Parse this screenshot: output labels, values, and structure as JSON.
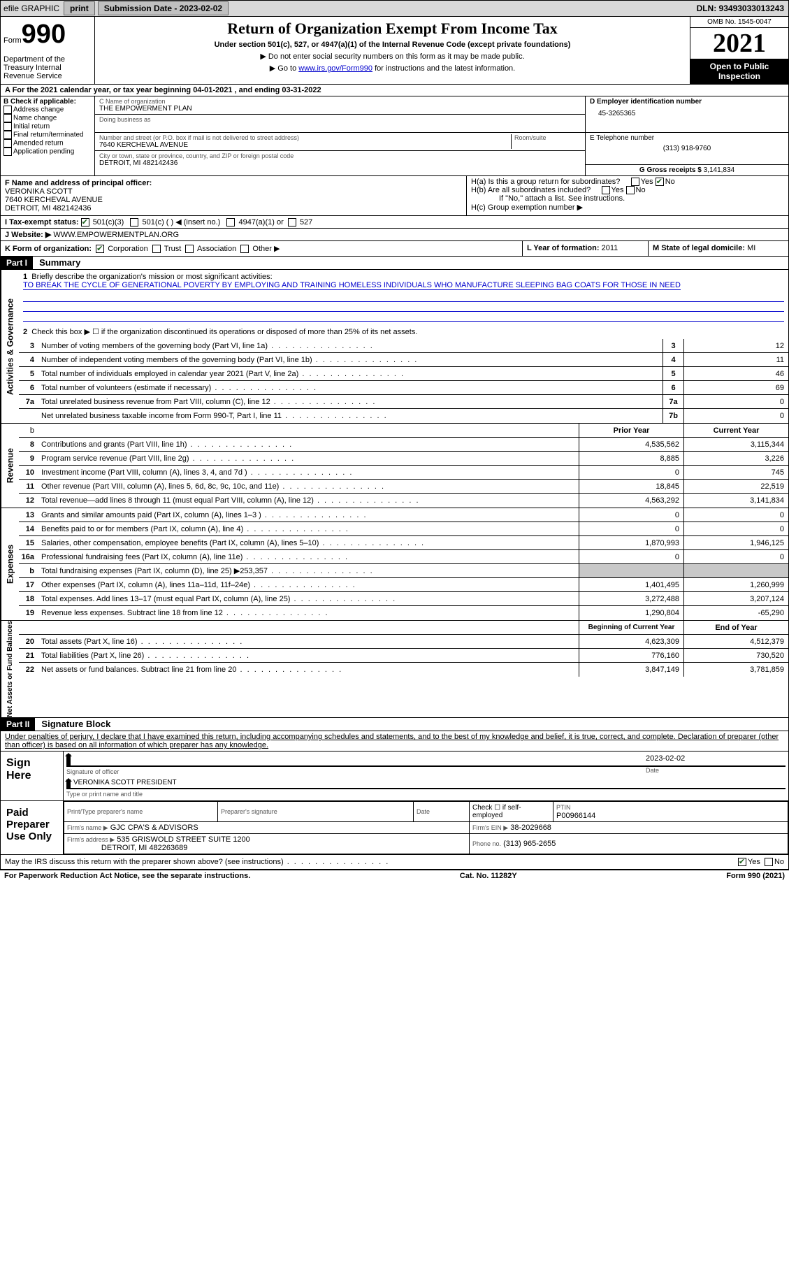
{
  "topbar": {
    "efile": "efile GRAPHIC",
    "print": "print",
    "sub_label": "Submission Date - 2023-02-02",
    "dln": "DLN: 93493033013243"
  },
  "header": {
    "form_word": "Form",
    "form_num": "990",
    "dept": "Department of the Treasury Internal Revenue Service",
    "title": "Return of Organization Exempt From Income Tax",
    "subtitle": "Under section 501(c), 527, or 4947(a)(1) of the Internal Revenue Code (except private foundations)",
    "note1": "▶ Do not enter social security numbers on this form as it may be made public.",
    "note2_pre": "▶ Go to ",
    "note2_link": "www.irs.gov/Form990",
    "note2_post": " for instructions and the latest information.",
    "omb": "OMB No. 1545-0047",
    "year": "2021",
    "open": "Open to Public Inspection"
  },
  "cal": "A For the 2021 calendar year, or tax year beginning 04-01-2021   , and ending 03-31-2022",
  "b": {
    "label": "B Check if applicable:",
    "opts": [
      "Address change",
      "Name change",
      "Initial return",
      "Final return/terminated",
      "Amended return",
      "Application pending"
    ]
  },
  "c": {
    "name_label": "C Name of organization",
    "name": "THE EMPOWERMENT PLAN",
    "dba_label": "Doing business as",
    "addr_label": "Number and street (or P.O. box if mail is not delivered to street address)",
    "room_label": "Room/suite",
    "addr": "7640 KERCHEVAL AVENUE",
    "city_label": "City or town, state or province, country, and ZIP or foreign postal code",
    "city": "DETROIT, MI  482142436"
  },
  "d": {
    "label": "D Employer identification number",
    "val": "45-3265365"
  },
  "e": {
    "label": "E Telephone number",
    "val": "(313) 918-9760"
  },
  "g": {
    "label": "G Gross receipts $",
    "val": "3,141,834"
  },
  "f": {
    "label": "F Name and address of principal officer:",
    "name": "VERONIKA SCOTT",
    "addr1": "7640 KERCHEVAL AVENUE",
    "addr2": "DETROIT, MI  482142436"
  },
  "h": {
    "a": "H(a)  Is this a group return for subordinates?",
    "b": "H(b)  Are all subordinates included?",
    "b_note": "If \"No,\" attach a list. See instructions.",
    "c": "H(c)  Group exemption number ▶"
  },
  "i": {
    "label": "I   Tax-exempt status:",
    "o1": "501(c)(3)",
    "o2": "501(c) (  ) ◀ (insert no.)",
    "o3": "4947(a)(1) or",
    "o4": "527"
  },
  "j": {
    "label": "J   Website: ▶ ",
    "val": "WWW.EMPOWERMENTPLAN.ORG"
  },
  "k": {
    "label": "K Form of organization:",
    "o1": "Corporation",
    "o2": "Trust",
    "o3": "Association",
    "o4": "Other ▶"
  },
  "l": {
    "label": "L Year of formation:",
    "val": "2011"
  },
  "m": {
    "label": "M State of legal domicile:",
    "val": "MI"
  },
  "part1": {
    "num": "Part I",
    "title": "Summary"
  },
  "summary": {
    "line1_label": "Briefly describe the organization's mission or most significant activities:",
    "line1_text": "TO BREAK THE CYCLE OF GENERATIONAL POVERTY BY EMPLOYING AND TRAINING HOMELESS INDIVIDUALS WHO MANUFACTURE SLEEPING BAG COATS FOR THOSE IN NEED",
    "line2": "Check this box ▶ ☐ if the organization discontinued its operations or disposed of more than 25% of its net assets.",
    "rows_gov": [
      {
        "n": "3",
        "t": "Number of voting members of the governing body (Part VI, line 1a)",
        "b": "3",
        "v": "12"
      },
      {
        "n": "4",
        "t": "Number of independent voting members of the governing body (Part VI, line 1b)",
        "b": "4",
        "v": "11"
      },
      {
        "n": "5",
        "t": "Total number of individuals employed in calendar year 2021 (Part V, line 2a)",
        "b": "5",
        "v": "46"
      },
      {
        "n": "6",
        "t": "Total number of volunteers (estimate if necessary)",
        "b": "6",
        "v": "69"
      },
      {
        "n": "7a",
        "t": "Total unrelated business revenue from Part VIII, column (C), line 12",
        "b": "7a",
        "v": "0"
      },
      {
        "n": "",
        "t": "Net unrelated business taxable income from Form 990-T, Part I, line 11",
        "b": "7b",
        "v": "0"
      }
    ],
    "hdr_prior": "Prior Year",
    "hdr_curr": "Current Year",
    "rows_rev": [
      {
        "n": "8",
        "t": "Contributions and grants (Part VIII, line 1h)",
        "p": "4,535,562",
        "c": "3,115,344"
      },
      {
        "n": "9",
        "t": "Program service revenue (Part VIII, line 2g)",
        "p": "8,885",
        "c": "3,226"
      },
      {
        "n": "10",
        "t": "Investment income (Part VIII, column (A), lines 3, 4, and 7d )",
        "p": "0",
        "c": "745"
      },
      {
        "n": "11",
        "t": "Other revenue (Part VIII, column (A), lines 5, 6d, 8c, 9c, 10c, and 11e)",
        "p": "18,845",
        "c": "22,519"
      },
      {
        "n": "12",
        "t": "Total revenue—add lines 8 through 11 (must equal Part VIII, column (A), line 12)",
        "p": "4,563,292",
        "c": "3,141,834"
      }
    ],
    "rows_exp": [
      {
        "n": "13",
        "t": "Grants and similar amounts paid (Part IX, column (A), lines 1–3 )",
        "p": "0",
        "c": "0"
      },
      {
        "n": "14",
        "t": "Benefits paid to or for members (Part IX, column (A), line 4)",
        "p": "0",
        "c": "0"
      },
      {
        "n": "15",
        "t": "Salaries, other compensation, employee benefits (Part IX, column (A), lines 5–10)",
        "p": "1,870,993",
        "c": "1,946,125"
      },
      {
        "n": "16a",
        "t": "Professional fundraising fees (Part IX, column (A), line 11e)",
        "p": "0",
        "c": "0"
      },
      {
        "n": "b",
        "t": "Total fundraising expenses (Part IX, column (D), line 25) ▶253,357",
        "p": "",
        "c": "",
        "shade": true
      },
      {
        "n": "17",
        "t": "Other expenses (Part IX, column (A), lines 11a–11d, 11f–24e)",
        "p": "1,401,495",
        "c": "1,260,999"
      },
      {
        "n": "18",
        "t": "Total expenses. Add lines 13–17 (must equal Part IX, column (A), line 25)",
        "p": "3,272,488",
        "c": "3,207,124"
      },
      {
        "n": "19",
        "t": "Revenue less expenses. Subtract line 18 from line 12",
        "p": "1,290,804",
        "c": "-65,290"
      }
    ],
    "hdr_beg": "Beginning of Current Year",
    "hdr_end": "End of Year",
    "rows_net": [
      {
        "n": "20",
        "t": "Total assets (Part X, line 16)",
        "p": "4,623,309",
        "c": "4,512,379"
      },
      {
        "n": "21",
        "t": "Total liabilities (Part X, line 26)",
        "p": "776,160",
        "c": "730,520"
      },
      {
        "n": "22",
        "t": "Net assets or fund balances. Subtract line 21 from line 20",
        "p": "3,847,149",
        "c": "3,781,859"
      }
    ]
  },
  "part2": {
    "num": "Part II",
    "title": "Signature Block"
  },
  "sig": {
    "jurat": "Under penalties of perjury, I declare that I have examined this return, including accompanying schedules and statements, and to the best of my knowledge and belief, it is true, correct, and complete. Declaration of preparer (other than officer) is based on all information of which preparer has any knowledge.",
    "sign_here": "Sign Here",
    "sig_officer": "Signature of officer",
    "date": "Date",
    "date_val": "2023-02-02",
    "name": "VERONIKA SCOTT PRESIDENT",
    "name_label": "Type or print name and title"
  },
  "prep": {
    "label": "Paid Preparer Use Only",
    "h1": "Print/Type preparer's name",
    "h2": "Preparer's signature",
    "h3": "Date",
    "h4_pre": "Check ☐ if self-employed",
    "h5": "PTIN",
    "ptin": "P00966144",
    "firm_label": "Firm's name   ▶",
    "firm": "GJC CPA'S & ADVISORS",
    "ein_label": "Firm's EIN ▶",
    "ein": "38-2029668",
    "addr_label": "Firm's address ▶",
    "addr": "535 GRISWOLD STREET SUITE 1200",
    "addr2": "DETROIT, MI  482263689",
    "phone_label": "Phone no.",
    "phone": "(313) 965-2655"
  },
  "may": "May the IRS discuss this return with the preparer shown above? (see instructions)",
  "footer": {
    "l": "For Paperwork Reduction Act Notice, see the separate instructions.",
    "m": "Cat. No. 11282Y",
    "r": "Form 990 (2021)"
  },
  "side": {
    "gov": "Activities & Governance",
    "rev": "Revenue",
    "exp": "Expenses",
    "net": "Net Assets or Fund Balances"
  }
}
